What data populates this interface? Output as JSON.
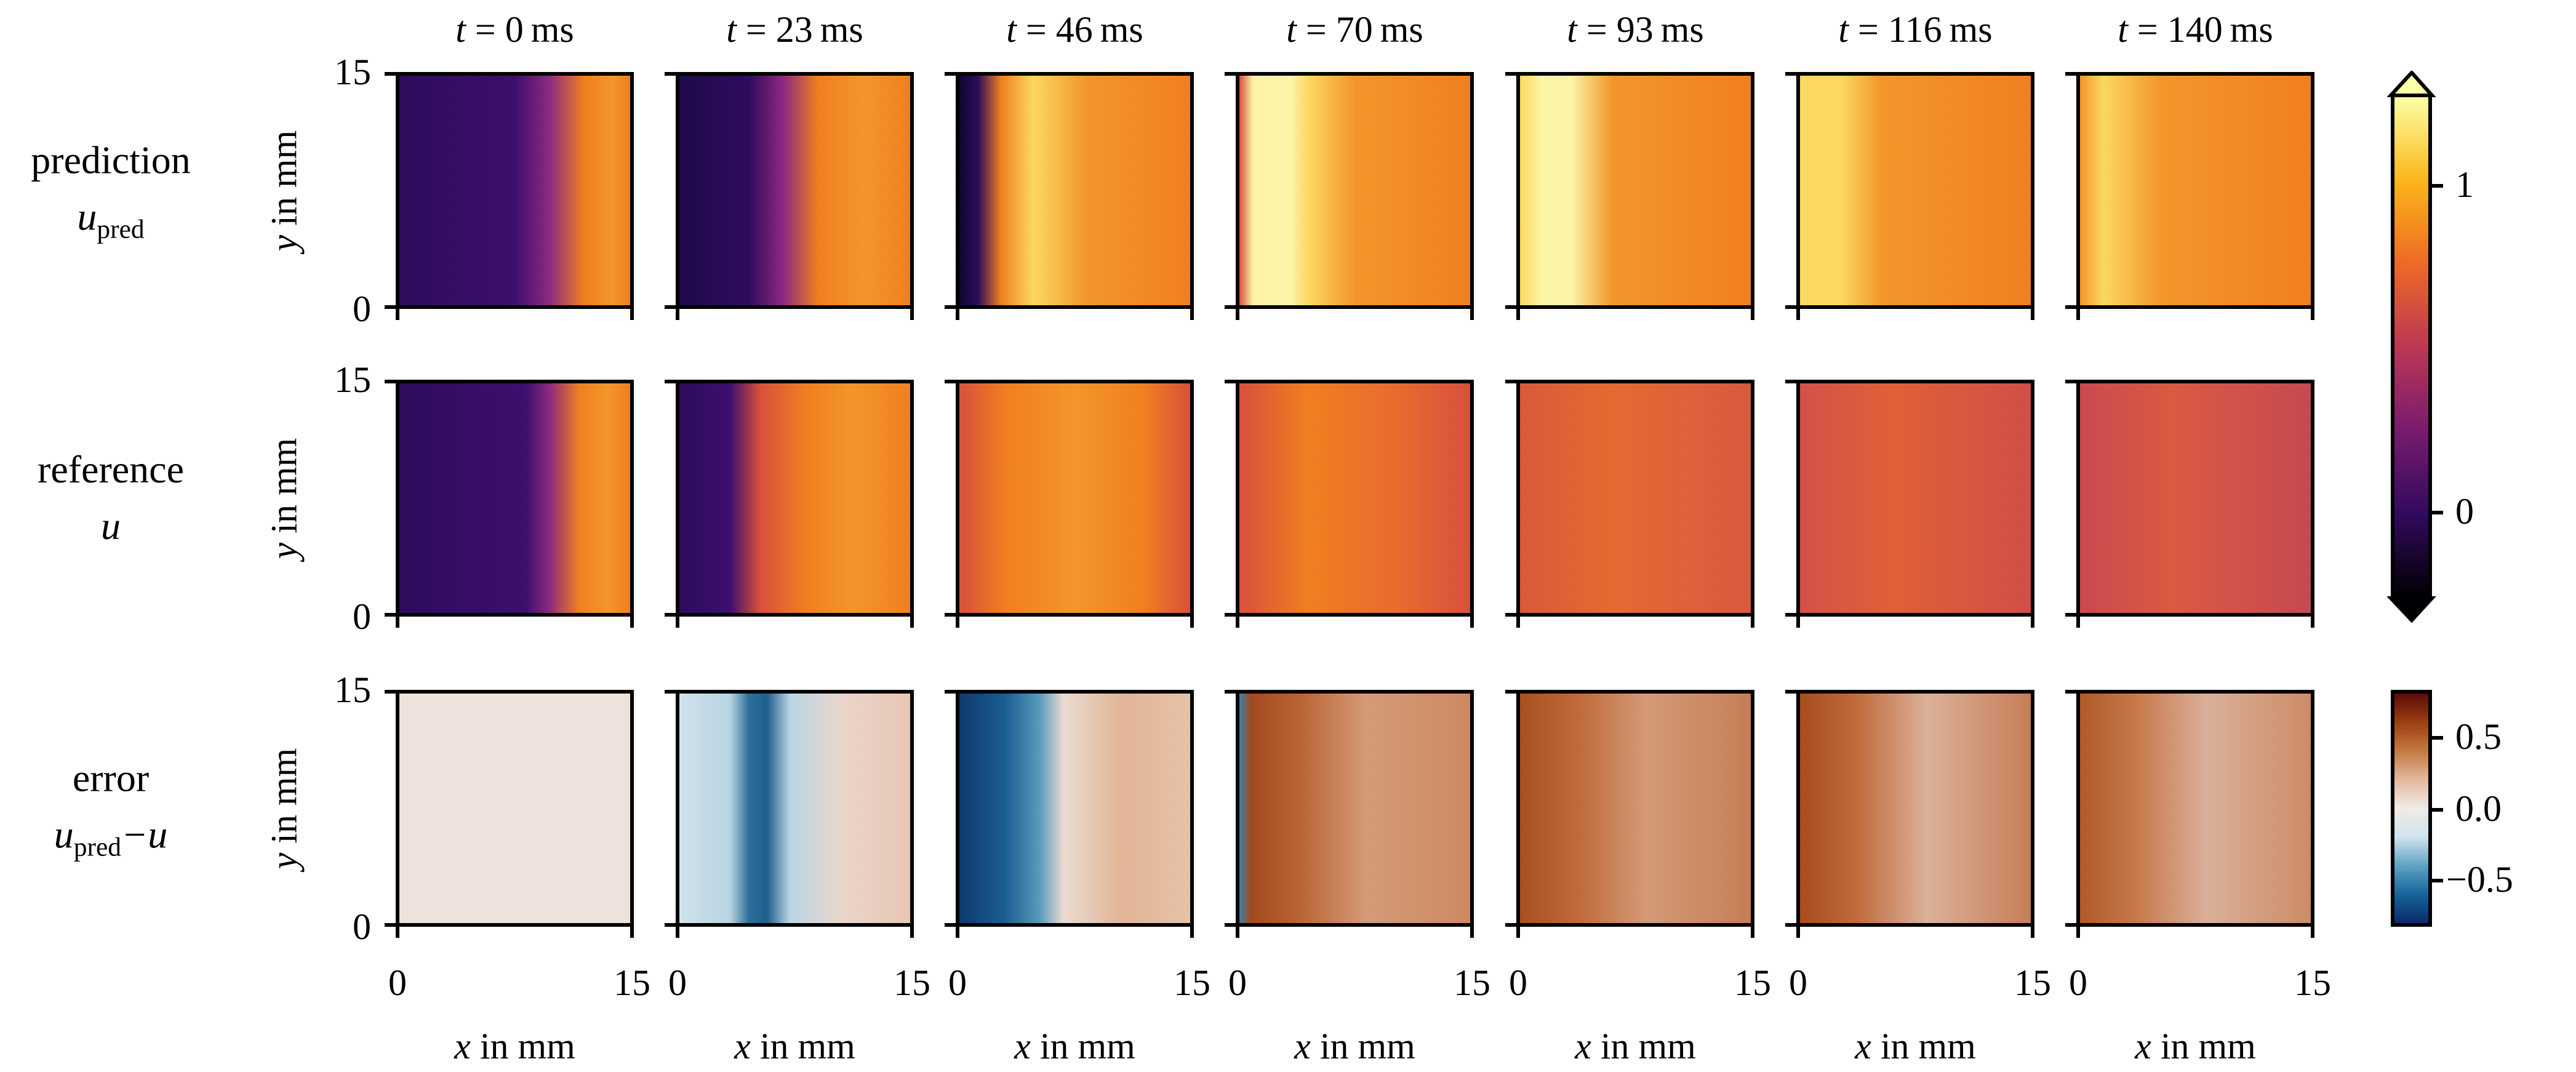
{
  "chart_data": {
    "type": "heatmap",
    "columns": [
      {
        "var": "t",
        "eq": "=",
        "value": "0",
        "unit": "ms"
      },
      {
        "var": "t",
        "eq": "=",
        "value": "23",
        "unit": "ms"
      },
      {
        "var": "t",
        "eq": "=",
        "value": "46",
        "unit": "ms"
      },
      {
        "var": "t",
        "eq": "=",
        "value": "70",
        "unit": "ms"
      },
      {
        "var": "t",
        "eq": "=",
        "value": "93",
        "unit": "ms"
      },
      {
        "var": "t",
        "eq": "=",
        "value": "116",
        "unit": "ms"
      },
      {
        "var": "t",
        "eq": "=",
        "value": "140",
        "unit": "ms"
      }
    ],
    "rows": [
      {
        "label": "prediction",
        "symbol": "u",
        "sub": "pred",
        "suffix": "",
        "colormap": "inferno"
      },
      {
        "label": "reference",
        "symbol": "u",
        "sub": "",
        "suffix": "",
        "colormap": "inferno"
      },
      {
        "label": "error",
        "symbol": "u",
        "sub": "pred",
        "suffix": "−u",
        "colormap": "balance"
      }
    ],
    "xlabel": {
      "var": "x",
      "rest": "in mm"
    },
    "ylabel": {
      "var": "y",
      "rest": "in mm"
    },
    "xticks": [
      "0",
      "15"
    ],
    "yticks": [
      "15",
      "0"
    ],
    "xlim": [
      0,
      15
    ],
    "ylim": [
      0,
      15
    ],
    "colorbars": [
      {
        "colormap": "inferno",
        "ticks": [
          "1",
          "0"
        ],
        "range": [
          -0.27,
          1.28
        ],
        "extend": "both"
      },
      {
        "colormap": "balance",
        "ticks": [
          "0.5",
          "0.0",
          "−0.5"
        ],
        "range": [
          -0.82,
          0.83
        ],
        "extend": "neither"
      }
    ],
    "grid": false
  }
}
